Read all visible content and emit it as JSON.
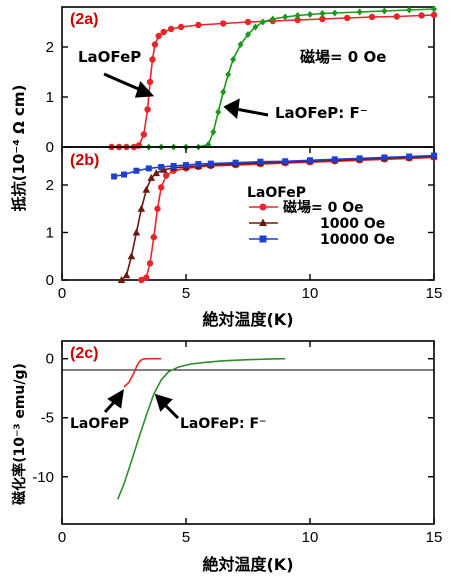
{
  "chart_data": [
    {
      "id": "2a",
      "type": "line",
      "panel_label": "(2a)",
      "xlim": [
        0,
        15
      ],
      "ylim": [
        0,
        2.8
      ],
      "yticks": [
        0,
        1,
        2
      ],
      "annotation_text": "磁場= 0 Oe",
      "series": [
        {
          "name": "LaOFeP",
          "color": "#e8262a",
          "marker": "circle",
          "x": [
            2.0,
            2.3,
            2.6,
            2.9,
            3.1,
            3.3,
            3.45,
            3.55,
            3.65,
            3.75,
            3.9,
            4.1,
            4.4,
            4.8,
            5.5,
            6.5,
            7.5,
            8.5,
            9.5,
            10.5,
            11.5,
            12.5,
            13.5,
            14.5,
            15
          ],
          "y": [
            0.0,
            0.0,
            0.0,
            0.0,
            0.03,
            0.25,
            0.75,
            1.3,
            1.75,
            2.05,
            2.22,
            2.3,
            2.36,
            2.4,
            2.44,
            2.47,
            2.5,
            2.52,
            2.54,
            2.56,
            2.58,
            2.6,
            2.61,
            2.63,
            2.64
          ]
        },
        {
          "name": "LaOFeP: F⁻",
          "color": "#1a9a1a",
          "marker": "diamond",
          "x": [
            3.5,
            4.0,
            4.5,
            5.0,
            5.5,
            5.9,
            6.1,
            6.3,
            6.5,
            6.7,
            6.9,
            7.2,
            7.5,
            7.8,
            8.1,
            8.5,
            9.0,
            9.5,
            10.0,
            10.5,
            11.0,
            12.0,
            13.0,
            14.0,
            15.0
          ],
          "y": [
            0.0,
            0.0,
            0.0,
            0.0,
            0.0,
            0.05,
            0.3,
            0.7,
            1.1,
            1.45,
            1.75,
            2.05,
            2.25,
            2.4,
            2.5,
            2.56,
            2.6,
            2.63,
            2.65,
            2.67,
            2.68,
            2.7,
            2.72,
            2.74,
            2.76
          ]
        }
      ]
    },
    {
      "id": "2b",
      "type": "line",
      "panel_label": "(2b)",
      "xlim": [
        0,
        15
      ],
      "xticks": [
        0,
        5,
        10,
        15
      ],
      "ylim": [
        0,
        2.8
      ],
      "yticks": [
        0,
        1,
        2
      ],
      "xlabel": "絶対温度(K)",
      "legend_title": "LaOFeP",
      "legend": [
        "磁場= 0 Oe",
        "1000 Oe",
        "10000 Oe"
      ],
      "series": [
        {
          "name": "磁場= 0 Oe",
          "color": "#e8262a",
          "marker": "circle",
          "x": [
            3.2,
            3.4,
            3.55,
            3.7,
            3.85,
            4.0,
            4.2,
            4.5,
            5.0,
            5.5,
            6.0,
            7.0,
            8.0,
            9.0,
            10.0,
            11.0,
            12.0,
            13.0,
            14.0,
            15.0
          ],
          "y": [
            0.0,
            0.05,
            0.35,
            0.9,
            1.5,
            1.95,
            2.2,
            2.3,
            2.35,
            2.38,
            2.4,
            2.42,
            2.44,
            2.46,
            2.48,
            2.5,
            2.52,
            2.54,
            2.56,
            2.58
          ]
        },
        {
          "name": "1000 Oe",
          "color": "#6b1a12",
          "marker": "triangle",
          "x": [
            2.4,
            2.6,
            2.8,
            3.0,
            3.2,
            3.4,
            3.6,
            3.8,
            4.1,
            4.5,
            5.0,
            5.5,
            6.0,
            7.0,
            8.0,
            9.0,
            10.0,
            11.0,
            12.0,
            13.0,
            14.0,
            15.0
          ],
          "y": [
            0.0,
            0.1,
            0.5,
            1.0,
            1.5,
            1.9,
            2.15,
            2.25,
            2.32,
            2.36,
            2.38,
            2.4,
            2.42,
            2.44,
            2.46,
            2.48,
            2.5,
            2.52,
            2.54,
            2.56,
            2.58,
            2.6
          ]
        },
        {
          "name": "10000 Oe",
          "color": "#1f3fd0",
          "marker": "square",
          "x": [
            2.1,
            2.5,
            3.0,
            3.5,
            4.0,
            4.5,
            5.0,
            5.5,
            6.0,
            7.0,
            8.0,
            9.0,
            10.0,
            11.0,
            12.0,
            13.0,
            14.0,
            15.0
          ],
          "y": [
            2.18,
            2.22,
            2.3,
            2.35,
            2.38,
            2.4,
            2.42,
            2.44,
            2.45,
            2.47,
            2.49,
            2.5,
            2.52,
            2.54,
            2.56,
            2.58,
            2.6,
            2.62
          ]
        }
      ]
    },
    {
      "id": "2c",
      "type": "line",
      "panel_label": "(2c)",
      "xlim": [
        0,
        15
      ],
      "xticks": [
        0,
        5,
        10,
        15
      ],
      "ylim": [
        -14,
        1.5
      ],
      "yticks": [
        0,
        -5,
        -10
      ],
      "xlabel": "絶対温度(K)",
      "ylabel": "磁化率(10⁻³ emu/g)",
      "series": [
        {
          "name": "LaOFeP",
          "color": "#e8262a",
          "x": [
            2.5,
            2.7,
            2.9,
            3.0,
            3.1,
            3.2,
            3.3,
            3.5,
            4.0
          ],
          "y": [
            -2.4,
            -2.0,
            -1.2,
            -0.7,
            -0.3,
            -0.1,
            -0.02,
            0.0,
            0.0
          ]
        },
        {
          "name": "LaOFeP: F⁻",
          "color": "#2e8b2e",
          "x": [
            2.25,
            2.5,
            2.8,
            3.1,
            3.4,
            3.7,
            4.0,
            4.3,
            4.7,
            5.2,
            5.8,
            6.5,
            7.5,
            8.5,
            9.0
          ],
          "y": [
            -11.9,
            -10.6,
            -8.7,
            -6.7,
            -4.8,
            -3.0,
            -1.8,
            -1.1,
            -0.7,
            -0.45,
            -0.3,
            -0.18,
            -0.08,
            -0.02,
            0.0
          ]
        }
      ]
    }
  ],
  "ylabel_ab": "抵抗(10⁻⁴ Ω cm)",
  "annotations": {
    "a_laofep": "LaOFeP",
    "a_laofepf": "LaOFeP: F⁻",
    "c_laofep": "LaOFeP",
    "c_laofepf": "LaOFeP: F⁻"
  },
  "colors": {
    "arrow": "#000000",
    "axis": "#000000",
    "panel_label": "#cc0000"
  }
}
